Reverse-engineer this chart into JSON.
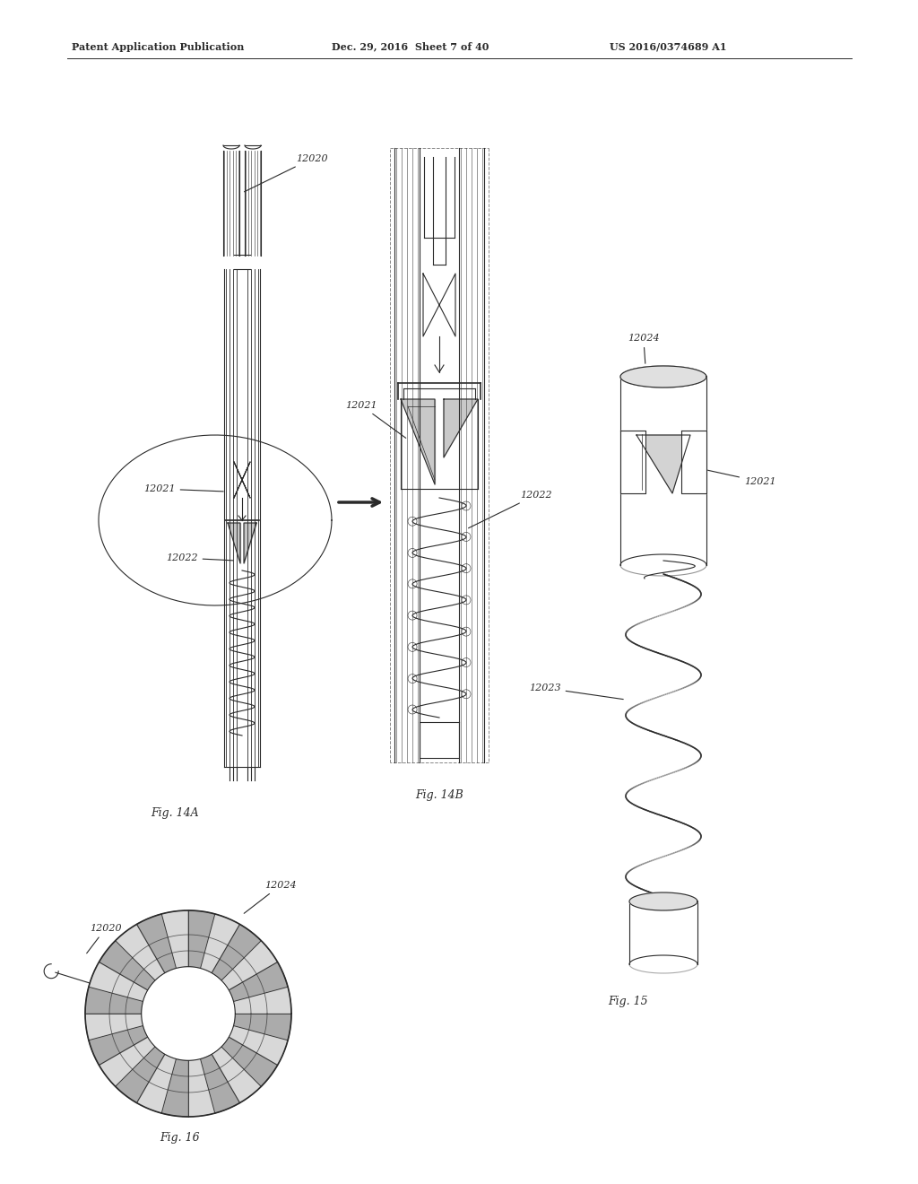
{
  "bg_color": "#ffffff",
  "line_color": "#2a2a2a",
  "header_left": "Patent Application Publication",
  "header_mid": "Dec. 29, 2016  Sheet 7 of 40",
  "header_right": "US 2016/0374689 A1",
  "fig14a_label": "Fig. 14A",
  "fig14b_label": "Fig. 14B",
  "fig15_label": "Fig. 15",
  "fig16_label": "Fig. 16"
}
